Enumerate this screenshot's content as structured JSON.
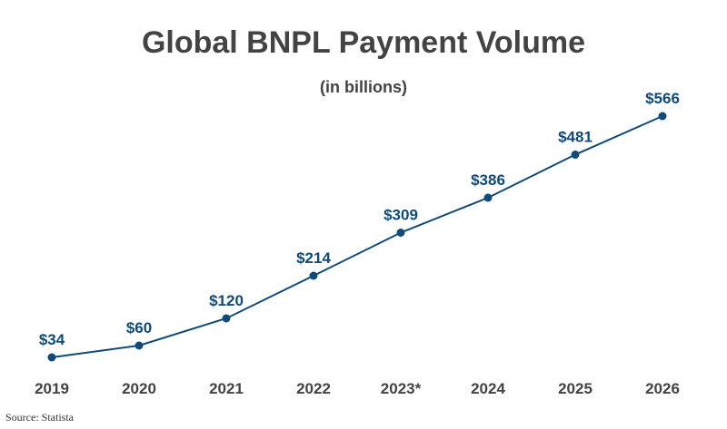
{
  "colors": {
    "line": "#0f4a78",
    "point": "#0f4a78",
    "value_label": "#0f4a78",
    "title": "#434343"
  },
  "chart_data": {
    "type": "line",
    "title": "Global BNPL Payment Volume",
    "subtitle": "(in billions)",
    "source": "Source: Statista",
    "xlabel": "",
    "ylabel": "",
    "grid": false,
    "legend": "none",
    "categories": [
      "2019",
      "2020",
      "2021",
      "2022",
      "2023*",
      "2024",
      "2025",
      "2026"
    ],
    "values": [
      34,
      60,
      120,
      214,
      309,
      386,
      481,
      566
    ],
    "data_labels": [
      "$34",
      "$60",
      "$120",
      "$214",
      "$309",
      "$386",
      "$481",
      "$566"
    ],
    "ylim": [
      0,
      600
    ]
  }
}
